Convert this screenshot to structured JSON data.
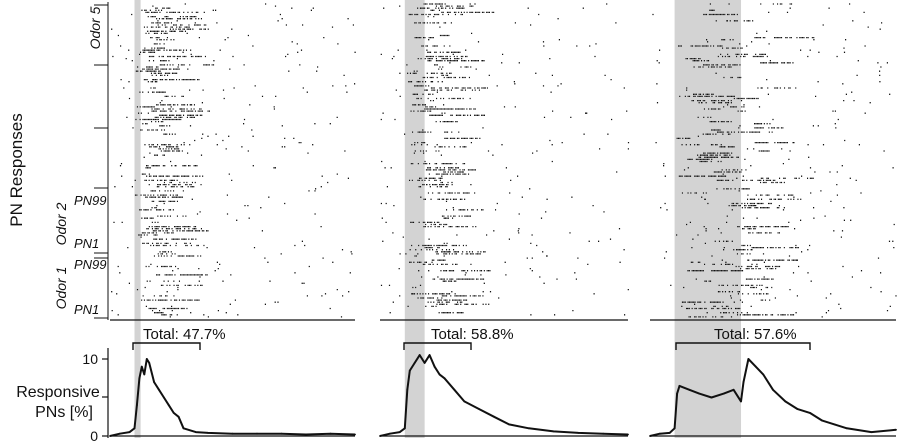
{
  "figure": {
    "ylabel_raster": "PN Responses",
    "ylabel_hist": "Responsive PNs [%]",
    "ylabel_hist_line1": "Responsive",
    "ylabel_hist_line2": "PNs [%]",
    "hist_yticks": [
      "0",
      "5",
      "10"
    ],
    "odor_labels": [
      "Odor 5",
      "Odor 2",
      "Odor 1"
    ],
    "pn_labels": [
      "PN99",
      "PN1",
      "PN99",
      "PN1"
    ]
  },
  "colors": {
    "stimulus_shade": "#d3d3d3",
    "ink": "#111111"
  },
  "chart_data": [
    {
      "type": "line",
      "panel": "left",
      "title": "Total: 47.7%",
      "ylabel": "Responsive PNs [%]",
      "ylim": [
        0,
        12
      ],
      "stimulus_fraction": [
        0.1,
        0.125
      ],
      "x": [
        0,
        0.04,
        0.08,
        0.1,
        0.11,
        0.12,
        0.13,
        0.14,
        0.15,
        0.16,
        0.18,
        0.2,
        0.22,
        0.24,
        0.26,
        0.28,
        0.3,
        0.35,
        0.4,
        0.5,
        0.6,
        0.7,
        0.8,
        0.9,
        1.0
      ],
      "values": [
        0,
        0.3,
        0.5,
        1.0,
        4.0,
        7.5,
        9.0,
        8.0,
        10.0,
        9.5,
        7.0,
        6.0,
        5.0,
        4.0,
        3.0,
        2.5,
        1.0,
        0.5,
        0.4,
        0.3,
        0.3,
        0.3,
        0.2,
        0.3,
        0.2
      ]
    },
    {
      "type": "line",
      "panel": "middle",
      "title": "Total: 58.8%",
      "ylabel": "",
      "ylim": [
        0,
        12
      ],
      "stimulus_fraction": [
        0.1,
        0.18
      ],
      "x": [
        0,
        0.04,
        0.08,
        0.1,
        0.11,
        0.12,
        0.14,
        0.16,
        0.18,
        0.2,
        0.22,
        0.24,
        0.26,
        0.3,
        0.34,
        0.4,
        0.46,
        0.52,
        0.6,
        0.7,
        0.8,
        0.9,
        1.0
      ],
      "values": [
        0,
        0.3,
        0.5,
        1.0,
        6.0,
        8.5,
        9.5,
        10.5,
        9.5,
        10.5,
        9.0,
        8.0,
        7.5,
        6.0,
        4.5,
        3.5,
        2.5,
        1.5,
        1.0,
        0.6,
        0.4,
        0.3,
        0.2
      ]
    },
    {
      "type": "line",
      "panel": "right",
      "title": "Total: 57.6%",
      "ylabel": "",
      "ylim": [
        0,
        12
      ],
      "stimulus_fraction": [
        0.1,
        0.37
      ],
      "x": [
        0,
        0.04,
        0.08,
        0.1,
        0.11,
        0.12,
        0.16,
        0.2,
        0.25,
        0.3,
        0.34,
        0.37,
        0.38,
        0.4,
        0.43,
        0.46,
        0.5,
        0.55,
        0.6,
        0.65,
        0.7,
        0.75,
        0.8,
        0.9,
        1.0
      ],
      "values": [
        0,
        0.3,
        0.4,
        1.0,
        5.5,
        6.5,
        6.0,
        5.5,
        5.0,
        5.5,
        6.0,
        4.5,
        7.0,
        10.0,
        9.0,
        8.0,
        6.0,
        4.5,
        3.5,
        3.0,
        2.0,
        1.5,
        1.0,
        0.5,
        0.8
      ]
    }
  ]
}
